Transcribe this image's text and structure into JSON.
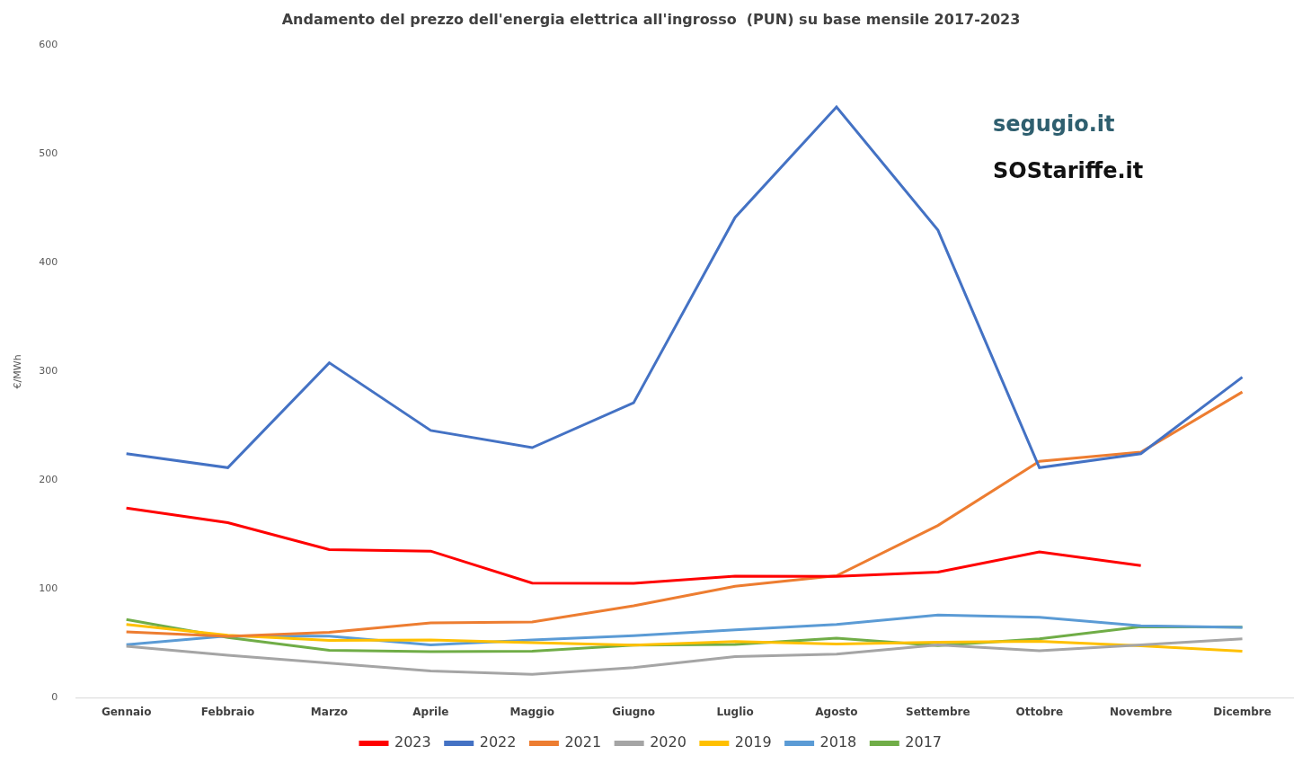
{
  "chart_data": {
    "type": "line",
    "title": "Andamento del prezzo dell'energia elettrica all'ingrosso  (PUN) su base mensile 2017-2023",
    "y_label": "€/MWh",
    "annotations": [
      "segugio.it",
      "SOStariffe.it"
    ],
    "categories": [
      "Gennaio",
      "Febbraio",
      "Marzo",
      "Aprile",
      "Maggio",
      "Giugno",
      "Luglio",
      "Agosto",
      "Settembre",
      "Ottobre",
      "Novembre",
      "Dicembre"
    ],
    "series": [
      {
        "name": "2023",
        "color": "#ff0000",
        "values": [
          174.5,
          161.1,
          136.4,
          135.0,
          105.7,
          105.3,
          112.1,
          111.9,
          115.7,
          134.3,
          121.7,
          null
        ]
      },
      {
        "name": "2022",
        "color": "#4472c4",
        "values": [
          224.5,
          211.7,
          308.1,
          245.9,
          230.1,
          271.3,
          441.6,
          543.2,
          429.9,
          211.7,
          224.5,
          294.9
        ]
      },
      {
        "name": "2021",
        "color": "#ed7d31",
        "values": [
          60.7,
          56.6,
          60.4,
          69.0,
          69.9,
          84.8,
          102.7,
          112.4,
          158.6,
          217.6,
          225.9,
          281.2
        ]
      },
      {
        "name": "2020",
        "color": "#a5a5a5",
        "values": [
          47.5,
          39.3,
          32.0,
          24.8,
          21.8,
          28.0,
          38.0,
          40.3,
          48.8,
          43.5,
          48.8,
          54.3
        ]
      },
      {
        "name": "2019",
        "color": "#ffc000",
        "values": [
          67.6,
          57.7,
          52.9,
          53.4,
          50.9,
          48.6,
          51.9,
          49.7,
          51.2,
          52.2,
          48.0,
          43.0
        ]
      },
      {
        "name": "2018",
        "color": "#5b9bd5",
        "values": [
          49.0,
          57.0,
          56.9,
          48.9,
          53.4,
          57.3,
          62.7,
          67.7,
          76.3,
          74.3,
          66.3,
          65.0
        ]
      },
      {
        "name": "2017",
        "color": "#70ad47",
        "values": [
          72.2,
          55.6,
          43.9,
          42.6,
          43.0,
          48.6,
          49.3,
          55.1,
          48.3,
          54.3,
          65.6,
          65.1
        ]
      }
    ],
    "ylim": [
      0,
      600
    ],
    "yticks": [
      0,
      100,
      200,
      300,
      400,
      500,
      600
    ],
    "grid": false,
    "legend": "bottom",
    "marker": "none"
  }
}
